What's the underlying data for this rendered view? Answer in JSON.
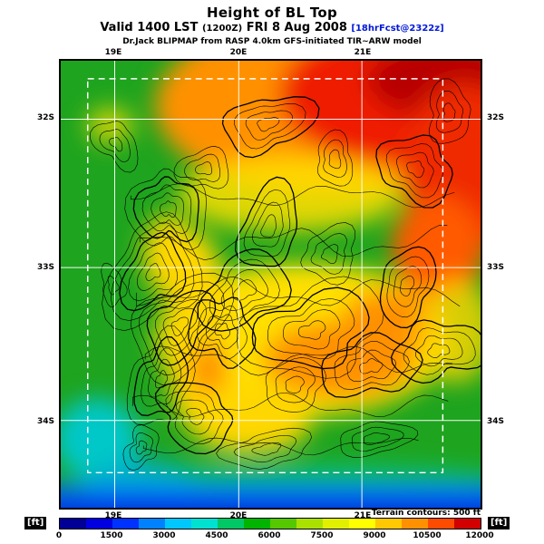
{
  "header": {
    "title": "Height of BL Top",
    "valid_prefix": "Valid 1400 LST",
    "valid_zulu": "(1200Z)",
    "valid_date": "FRI 8 Aug 2008",
    "valid_fcst": "[18hrFcst@2322z]",
    "model_line": "Dr.Jack BLIPMAP from RASP 4.0km GFS-initiated TIR~ARW model"
  },
  "map_axes": {
    "lon_labels": [
      "19E",
      "20E",
      "21E"
    ],
    "lat_labels": [
      "32S",
      "33S",
      "34S"
    ]
  },
  "colorbar": {
    "unit": "[ft]",
    "note": "Terrain contours: 500 ft",
    "tick_labels": [
      "0",
      "1500",
      "3000",
      "4500",
      "6000",
      "7500",
      "9000",
      "10500",
      "12000"
    ],
    "colors": [
      "#000096",
      "#0000e1",
      "#0032ff",
      "#0082ff",
      "#00c8ff",
      "#00e1d2",
      "#00c864",
      "#00b400",
      "#55c800",
      "#aae100",
      "#e1f000",
      "#ffff00",
      "#ffc800",
      "#ff9100",
      "#ff4b00",
      "#d20000"
    ]
  },
  "chart_data": {
    "type": "heatmap",
    "title": "Height of BL Top",
    "units": "ft",
    "value_range": [
      0,
      12000
    ],
    "colorbar_ticks": [
      0,
      1500,
      3000,
      4500,
      6000,
      7500,
      9000,
      10500,
      12000
    ],
    "x_axis": {
      "label": "longitude",
      "ticks": [
        "19E",
        "20E",
        "21E"
      ]
    },
    "y_axis": {
      "label": "latitude",
      "ticks": [
        "32S",
        "33S",
        "34S"
      ]
    },
    "terrain_contour_interval_ft": 500,
    "overlay": "dashed white model-domain box and white lat/lon grid lines",
    "summary_regions": [
      {
        "area": "northeast quadrant",
        "approx_value_ft": 10500,
        "color": "red"
      },
      {
        "area": "north-central band",
        "approx_value_ft": 9500,
        "color": "orange"
      },
      {
        "area": "east edge mid-map blob",
        "approx_value_ft": 10000,
        "color": "red-orange"
      },
      {
        "area": "central plateau",
        "approx_value_ft": 7500,
        "color": "yellow"
      },
      {
        "area": "central core patch",
        "approx_value_ft": 9000,
        "color": "orange"
      },
      {
        "area": "western ridge stripes",
        "approx_value_ft": 6500,
        "color": "yellow-green"
      },
      {
        "area": "west and northwest",
        "approx_value_ft": 5000,
        "color": "green"
      },
      {
        "area": "southwest corner sea",
        "approx_value_ft": 2500,
        "color": "cyan"
      },
      {
        "area": "southern coastal strip",
        "approx_value_ft": 1000,
        "color": "blue"
      }
    ]
  }
}
